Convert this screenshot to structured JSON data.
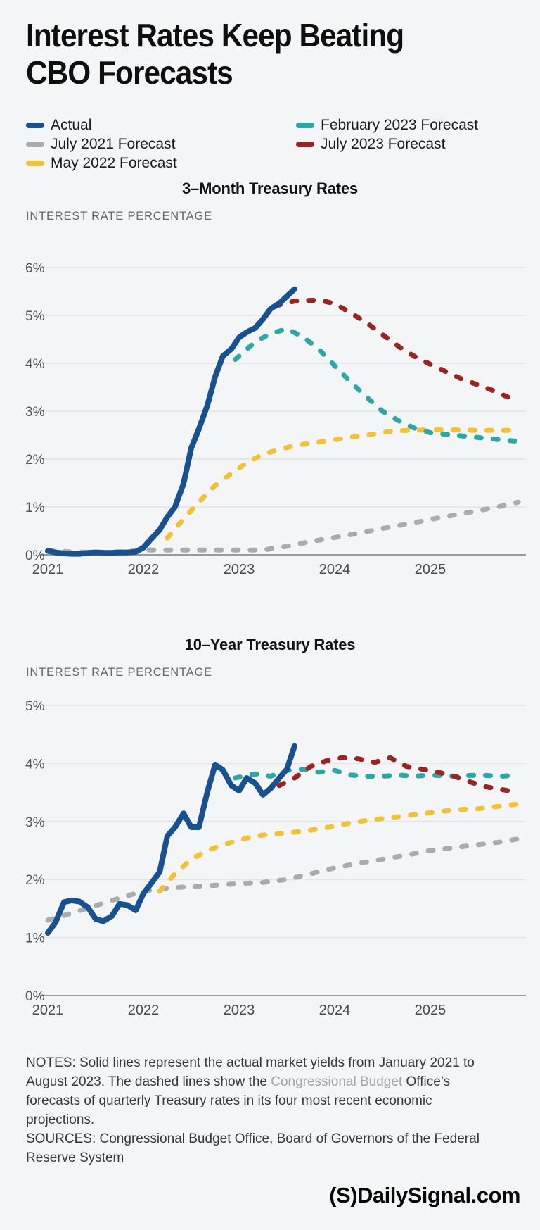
{
  "header": {
    "title_line1": "Interest Rates Keep Beating",
    "title_line2": "CBO Forecasts"
  },
  "legend": {
    "column1": [
      {
        "label": "Actual",
        "color": "#17518f"
      },
      {
        "label": "July 2021 Forecast",
        "color": "#a9abad"
      },
      {
        "label": "May 2022 Forecast",
        "color": "#f0c337"
      }
    ],
    "column2": [
      {
        "label": "February 2023 Forecast",
        "color": "#2ba7a5"
      },
      {
        "label": "July 2023 Forecast",
        "color": "#992421"
      }
    ]
  },
  "chart_data": [
    {
      "type": "line",
      "title": "3–Month Treasury Rates",
      "ylabel": "INTEREST RATE PERCENTAGE",
      "ylim": [
        0,
        6
      ],
      "yticks": [
        0,
        1,
        2,
        3,
        4,
        5,
        6
      ],
      "ytick_suffix": "%",
      "xticks": [
        2021,
        2022,
        2023,
        2024,
        2025
      ],
      "grid": true,
      "legend_position": "top-of-page-shared",
      "series": [
        {
          "name": "July 2021 Forecast",
          "color": "#a9abad",
          "dash": true,
          "points": [
            [
              2021.0,
              0.09
            ],
            [
              2021.25,
              0.06
            ],
            [
              2021.5,
              0.05
            ],
            [
              2021.75,
              0.06
            ],
            [
              2022.0,
              0.1
            ],
            [
              2022.25,
              0.1
            ],
            [
              2022.5,
              0.1
            ],
            [
              2022.75,
              0.1
            ],
            [
              2023.0,
              0.1
            ],
            [
              2023.25,
              0.1
            ],
            [
              2023.5,
              0.18
            ],
            [
              2023.75,
              0.28
            ],
            [
              2024.0,
              0.36
            ],
            [
              2024.25,
              0.45
            ],
            [
              2024.5,
              0.55
            ],
            [
              2024.75,
              0.64
            ],
            [
              2025.0,
              0.74
            ],
            [
              2025.25,
              0.83
            ],
            [
              2025.5,
              0.92
            ],
            [
              2025.75,
              1.02
            ],
            [
              2025.92,
              1.1
            ]
          ]
        },
        {
          "name": "May 2022 Forecast",
          "color": "#f0c337",
          "dash": true,
          "points": [
            [
              2022.25,
              0.35
            ],
            [
              2022.42,
              0.75
            ],
            [
              2022.58,
              1.1
            ],
            [
              2022.75,
              1.45
            ],
            [
              2022.92,
              1.7
            ],
            [
              2023.08,
              1.92
            ],
            [
              2023.25,
              2.1
            ],
            [
              2023.42,
              2.2
            ],
            [
              2023.58,
              2.28
            ],
            [
              2023.75,
              2.33
            ],
            [
              2023.92,
              2.38
            ],
            [
              2024.08,
              2.43
            ],
            [
              2024.25,
              2.48
            ],
            [
              2024.42,
              2.53
            ],
            [
              2024.58,
              2.58
            ],
            [
              2024.75,
              2.6
            ],
            [
              2025.0,
              2.61
            ],
            [
              2025.25,
              2.61
            ],
            [
              2025.5,
              2.6
            ],
            [
              2025.75,
              2.6
            ],
            [
              2025.92,
              2.6
            ]
          ]
        },
        {
          "name": "February 2023 Forecast",
          "color": "#2ba7a5",
          "dash": true,
          "points": [
            [
              2022.96,
              4.08
            ],
            [
              2023.17,
              4.45
            ],
            [
              2023.33,
              4.62
            ],
            [
              2023.5,
              4.72
            ],
            [
              2023.67,
              4.55
            ],
            [
              2023.83,
              4.3
            ],
            [
              2024.0,
              3.95
            ],
            [
              2024.17,
              3.6
            ],
            [
              2024.33,
              3.3
            ],
            [
              2024.5,
              3.0
            ],
            [
              2024.67,
              2.8
            ],
            [
              2024.83,
              2.65
            ],
            [
              2025.0,
              2.55
            ],
            [
              2025.25,
              2.5
            ],
            [
              2025.5,
              2.45
            ],
            [
              2025.75,
              2.4
            ],
            [
              2025.92,
              2.37
            ]
          ]
        },
        {
          "name": "July 2023 Forecast",
          "color": "#992421",
          "dash": true,
          "points": [
            [
              2023.38,
              5.2
            ],
            [
              2023.58,
              5.3
            ],
            [
              2023.83,
              5.32
            ],
            [
              2024.0,
              5.25
            ],
            [
              2024.17,
              5.05
            ],
            [
              2024.33,
              4.85
            ],
            [
              2024.5,
              4.6
            ],
            [
              2024.67,
              4.35
            ],
            [
              2024.83,
              4.15
            ],
            [
              2025.0,
              3.98
            ],
            [
              2025.17,
              3.82
            ],
            [
              2025.33,
              3.67
            ],
            [
              2025.5,
              3.55
            ],
            [
              2025.67,
              3.42
            ],
            [
              2025.83,
              3.28
            ],
            [
              2025.92,
              3.2
            ]
          ]
        },
        {
          "name": "Actual",
          "color": "#17518f",
          "dash": false,
          "points": [
            [
              2021.0,
              0.08
            ],
            [
              2021.08,
              0.05
            ],
            [
              2021.17,
              0.03
            ],
            [
              2021.25,
              0.02
            ],
            [
              2021.33,
              0.02
            ],
            [
              2021.42,
              0.04
            ],
            [
              2021.5,
              0.05
            ],
            [
              2021.58,
              0.04
            ],
            [
              2021.67,
              0.04
            ],
            [
              2021.75,
              0.05
            ],
            [
              2021.83,
              0.05
            ],
            [
              2021.92,
              0.06
            ],
            [
              2022.0,
              0.15
            ],
            [
              2022.08,
              0.33
            ],
            [
              2022.17,
              0.52
            ],
            [
              2022.25,
              0.79
            ],
            [
              2022.33,
              1.0
            ],
            [
              2022.42,
              1.49
            ],
            [
              2022.5,
              2.23
            ],
            [
              2022.58,
              2.63
            ],
            [
              2022.67,
              3.13
            ],
            [
              2022.75,
              3.72
            ],
            [
              2022.83,
              4.15
            ],
            [
              2022.92,
              4.3
            ],
            [
              2023.0,
              4.54
            ],
            [
              2023.08,
              4.65
            ],
            [
              2023.17,
              4.74
            ],
            [
              2023.25,
              4.92
            ],
            [
              2023.33,
              5.14
            ],
            [
              2023.42,
              5.25
            ],
            [
              2023.5,
              5.4
            ],
            [
              2023.58,
              5.55
            ]
          ]
        }
      ]
    },
    {
      "type": "line",
      "title": "10–Year Treasury Rates",
      "ylabel": "INTEREST RATE PERCENTAGE",
      "ylim": [
        0,
        5
      ],
      "yticks": [
        0,
        1,
        2,
        3,
        4,
        5
      ],
      "ytick_suffix": "%",
      "xticks": [
        2021,
        2022,
        2023,
        2024,
        2025
      ],
      "grid": true,
      "legend_position": "top-of-page-shared",
      "series": [
        {
          "name": "July 2021 Forecast",
          "color": "#a9abad",
          "dash": true,
          "points": [
            [
              2021.0,
              1.3
            ],
            [
              2021.25,
              1.42
            ],
            [
              2021.5,
              1.55
            ],
            [
              2021.75,
              1.68
            ],
            [
              2022.0,
              1.8
            ],
            [
              2022.25,
              1.85
            ],
            [
              2022.5,
              1.88
            ],
            [
              2022.75,
              1.9
            ],
            [
              2023.0,
              1.93
            ],
            [
              2023.25,
              1.95
            ],
            [
              2023.5,
              2.0
            ],
            [
              2023.75,
              2.1
            ],
            [
              2024.0,
              2.2
            ],
            [
              2024.25,
              2.28
            ],
            [
              2024.5,
              2.35
            ],
            [
              2024.75,
              2.42
            ],
            [
              2025.0,
              2.5
            ],
            [
              2025.25,
              2.55
            ],
            [
              2025.5,
              2.6
            ],
            [
              2025.75,
              2.65
            ],
            [
              2025.92,
              2.7
            ]
          ]
        },
        {
          "name": "May 2022 Forecast",
          "color": "#f0c337",
          "dash": true,
          "points": [
            [
              2022.17,
              1.8
            ],
            [
              2022.33,
              2.1
            ],
            [
              2022.5,
              2.35
            ],
            [
              2022.67,
              2.5
            ],
            [
              2022.83,
              2.6
            ],
            [
              2023.0,
              2.68
            ],
            [
              2023.17,
              2.75
            ],
            [
              2023.33,
              2.78
            ],
            [
              2023.5,
              2.8
            ],
            [
              2023.75,
              2.85
            ],
            [
              2024.0,
              2.92
            ],
            [
              2024.25,
              3.0
            ],
            [
              2024.5,
              3.05
            ],
            [
              2024.75,
              3.1
            ],
            [
              2025.0,
              3.15
            ],
            [
              2025.25,
              3.2
            ],
            [
              2025.5,
              3.22
            ],
            [
              2025.75,
              3.27
            ],
            [
              2025.92,
              3.3
            ]
          ]
        },
        {
          "name": "February 2023 Forecast",
          "color": "#2ba7a5",
          "dash": true,
          "points": [
            [
              2022.96,
              3.75
            ],
            [
              2023.17,
              3.82
            ],
            [
              2023.33,
              3.78
            ],
            [
              2023.5,
              3.88
            ],
            [
              2023.67,
              3.9
            ],
            [
              2023.83,
              3.85
            ],
            [
              2024.0,
              3.88
            ],
            [
              2024.17,
              3.8
            ],
            [
              2024.33,
              3.78
            ],
            [
              2024.5,
              3.78
            ],
            [
              2024.67,
              3.8
            ],
            [
              2024.83,
              3.78
            ],
            [
              2025.0,
              3.8
            ],
            [
              2025.25,
              3.78
            ],
            [
              2025.5,
              3.8
            ],
            [
              2025.75,
              3.78
            ],
            [
              2025.92,
              3.8
            ]
          ]
        },
        {
          "name": "July 2023 Forecast",
          "color": "#992421",
          "dash": true,
          "points": [
            [
              2023.42,
              3.62
            ],
            [
              2023.58,
              3.75
            ],
            [
              2023.75,
              3.95
            ],
            [
              2023.92,
              4.05
            ],
            [
              2024.08,
              4.1
            ],
            [
              2024.25,
              4.08
            ],
            [
              2024.42,
              4.02
            ],
            [
              2024.58,
              4.1
            ],
            [
              2024.75,
              3.95
            ],
            [
              2024.92,
              3.9
            ],
            [
              2025.08,
              3.85
            ],
            [
              2025.25,
              3.78
            ],
            [
              2025.42,
              3.68
            ],
            [
              2025.58,
              3.6
            ],
            [
              2025.75,
              3.55
            ],
            [
              2025.92,
              3.5
            ]
          ]
        },
        {
          "name": "Actual",
          "color": "#17518f",
          "dash": false,
          "points": [
            [
              2021.0,
              1.08
            ],
            [
              2021.08,
              1.26
            ],
            [
              2021.17,
              1.61
            ],
            [
              2021.25,
              1.64
            ],
            [
              2021.33,
              1.62
            ],
            [
              2021.42,
              1.52
            ],
            [
              2021.5,
              1.32
            ],
            [
              2021.58,
              1.28
            ],
            [
              2021.67,
              1.37
            ],
            [
              2021.75,
              1.58
            ],
            [
              2021.83,
              1.56
            ],
            [
              2021.92,
              1.47
            ],
            [
              2022.0,
              1.76
            ],
            [
              2022.08,
              1.93
            ],
            [
              2022.17,
              2.13
            ],
            [
              2022.25,
              2.75
            ],
            [
              2022.33,
              2.9
            ],
            [
              2022.42,
              3.14
            ],
            [
              2022.5,
              2.9
            ],
            [
              2022.58,
              2.9
            ],
            [
              2022.67,
              3.52
            ],
            [
              2022.75,
              3.98
            ],
            [
              2022.83,
              3.89
            ],
            [
              2022.92,
              3.62
            ],
            [
              2023.0,
              3.53
            ],
            [
              2023.08,
              3.75
            ],
            [
              2023.17,
              3.66
            ],
            [
              2023.25,
              3.46
            ],
            [
              2023.33,
              3.57
            ],
            [
              2023.42,
              3.75
            ],
            [
              2023.5,
              3.9
            ],
            [
              2023.58,
              4.3
            ]
          ]
        }
      ]
    }
  ],
  "notes": {
    "part1": "NOTES: Solid lines represent the actual market yields from January 2021 to August 2023. The dashed lines show the ",
    "link_text": "Congressional Budget",
    "part2": " Office’s forecasts of quarterly Treasury rates in its four most recent economic projections.",
    "sources": "SOURCES: Congressional Budget Office, Board of Governors of the Federal Reserve System"
  },
  "footer": {
    "logo_mark": "(S)",
    "logo_text": "DailySignal.com"
  }
}
